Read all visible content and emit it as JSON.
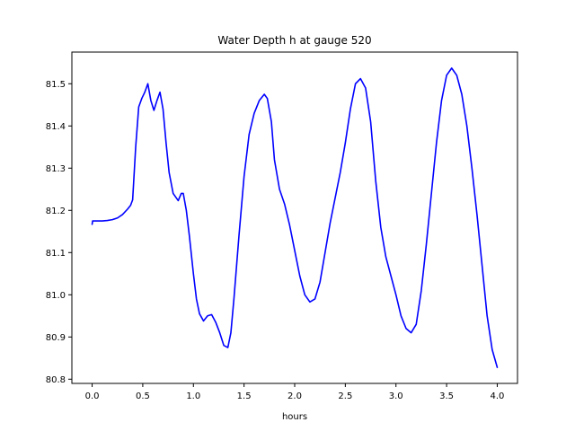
{
  "chart_data": {
    "type": "line",
    "title": "Water Depth h at gauge 520",
    "xlabel": "hours",
    "ylabel": "",
    "xlim": [
      -0.2,
      4.2
    ],
    "ylim": [
      80.79,
      81.575
    ],
    "xticks": [
      0.0,
      0.5,
      1.0,
      1.5,
      2.0,
      2.5,
      3.0,
      3.5,
      4.0
    ],
    "xtick_labels": [
      "0.0",
      "0.5",
      "1.0",
      "1.5",
      "2.0",
      "2.5",
      "3.0",
      "3.5",
      "4.0"
    ],
    "yticks": [
      80.8,
      80.9,
      81.0,
      81.1,
      81.2,
      81.3,
      81.4,
      81.5
    ],
    "ytick_labels": [
      "80.8",
      "80.9",
      "81.0",
      "81.1",
      "81.2",
      "81.3",
      "81.4",
      "81.5"
    ],
    "grid": false,
    "series": [
      {
        "color": "#0000ff",
        "x": [
          0.0,
          0.005,
          0.05,
          0.1,
          0.15,
          0.2,
          0.25,
          0.3,
          0.35,
          0.38,
          0.4,
          0.43,
          0.46,
          0.49,
          0.52,
          0.55,
          0.58,
          0.61,
          0.64,
          0.67,
          0.7,
          0.73,
          0.76,
          0.8,
          0.85,
          0.88,
          0.9,
          0.93,
          0.96,
          1.0,
          1.03,
          1.06,
          1.1,
          1.14,
          1.18,
          1.22,
          1.26,
          1.3,
          1.34,
          1.37,
          1.4,
          1.45,
          1.5,
          1.55,
          1.6,
          1.65,
          1.7,
          1.73,
          1.77,
          1.8,
          1.85,
          1.9,
          1.95,
          2.0,
          2.05,
          2.1,
          2.15,
          2.2,
          2.25,
          2.3,
          2.35,
          2.4,
          2.45,
          2.5,
          2.55,
          2.6,
          2.65,
          2.7,
          2.75,
          2.8,
          2.85,
          2.9,
          2.95,
          3.0,
          3.05,
          3.1,
          3.15,
          3.2,
          3.25,
          3.3,
          3.35,
          3.4,
          3.45,
          3.5,
          3.55,
          3.6,
          3.65,
          3.7,
          3.75,
          3.8,
          3.85,
          3.9,
          3.95,
          4.0
        ],
        "values": [
          81.167,
          81.175,
          81.175,
          81.175,
          81.176,
          81.178,
          81.182,
          81.19,
          81.203,
          81.212,
          81.225,
          81.35,
          81.445,
          81.465,
          81.48,
          81.5,
          81.46,
          81.437,
          81.46,
          81.48,
          81.44,
          81.36,
          81.29,
          81.24,
          81.223,
          81.24,
          81.24,
          81.2,
          81.14,
          81.05,
          80.99,
          80.955,
          80.938,
          80.95,
          80.953,
          80.935,
          80.91,
          80.88,
          80.875,
          80.91,
          80.99,
          81.14,
          81.28,
          81.38,
          81.43,
          81.46,
          81.475,
          81.465,
          81.41,
          81.32,
          81.25,
          81.215,
          81.165,
          81.105,
          81.045,
          81.0,
          80.983,
          80.99,
          81.03,
          81.1,
          81.17,
          81.23,
          81.29,
          81.36,
          81.44,
          81.5,
          81.512,
          81.49,
          81.41,
          81.27,
          81.16,
          81.09,
          81.045,
          81.0,
          80.95,
          80.92,
          80.91,
          80.93,
          81.01,
          81.12,
          81.24,
          81.36,
          81.46,
          81.52,
          81.537,
          81.52,
          81.475,
          81.4,
          81.3,
          81.19,
          81.07,
          80.95,
          80.87,
          80.828
        ]
      }
    ]
  }
}
